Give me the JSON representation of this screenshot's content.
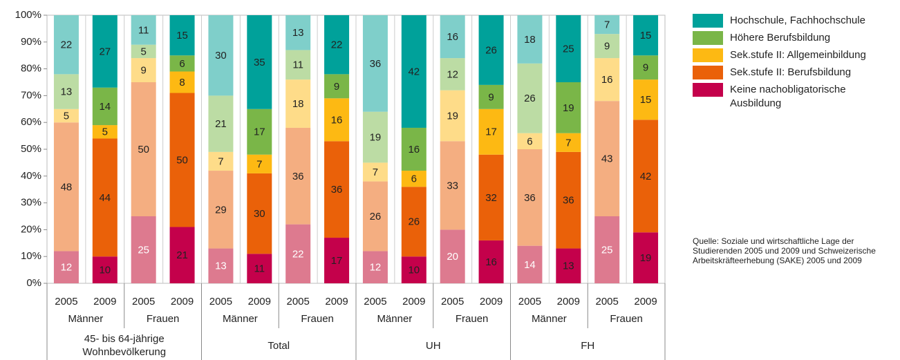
{
  "chart_data": {
    "type": "stacked_bar",
    "categories": [
      "2005",
      "2009",
      "2005",
      "2009",
      "2005",
      "2009",
      "2005",
      "2009",
      "2005",
      "2009",
      "2005",
      "2009",
      "2005",
      "2009",
      "2005",
      "2009"
    ],
    "groups": [
      "Männer",
      "Frauen",
      "Männer",
      "Frauen",
      "Männer",
      "Frauen",
      "Männer",
      "Frauen"
    ],
    "supergroups": [
      "45- bis 64-jährige Wohnbevölkerung",
      "Total",
      "UH",
      "FH"
    ],
    "ylim": [
      0,
      100
    ],
    "yticks": [
      {
        "value": 0,
        "label": "0%"
      },
      {
        "value": 10,
        "label": "10%"
      },
      {
        "value": 20,
        "label": "20%"
      },
      {
        "value": 30,
        "label": "30%"
      },
      {
        "value": 40,
        "label": "40%"
      },
      {
        "value": 50,
        "label": "50%"
      },
      {
        "value": 60,
        "label": "60%"
      },
      {
        "value": 70,
        "label": "70%"
      },
      {
        "value": 80,
        "label": "80%"
      },
      {
        "value": 90,
        "label": "90%"
      },
      {
        "value": 100,
        "label": "100%"
      }
    ],
    "series": [
      {
        "name": "Keine nachobligatorische Ausbildung",
        "color": "#c4014b",
        "colors": [
          "#dd7a8f",
          "#c4014b",
          "#dd7a8f",
          "#c4014b",
          "#dd7a8f",
          "#c4014b",
          "#dd7a8f",
          "#c4014b",
          "#dd7a8f",
          "#c4014b",
          "#dd7a8f",
          "#c4014b",
          "#dd7a8f",
          "#c4014b",
          "#dd7a8f",
          "#c4014b"
        ],
        "values": [
          12,
          10,
          25,
          21,
          13,
          11,
          22,
          17,
          12,
          10,
          20,
          16,
          14,
          13,
          25,
          19
        ]
      },
      {
        "name": "Sek.stufe II: Berufsbildung",
        "color": "#ea6109",
        "colors": [
          "#f4ae81",
          "#ea6109",
          "#f4ae81",
          "#ea6109",
          "#f4ae81",
          "#ea6109",
          "#f4ae81",
          "#ea6109",
          "#f4ae81",
          "#ea6109",
          "#f4ae81",
          "#ea6109",
          "#f4ae81",
          "#ea6109",
          "#f4ae81",
          "#ea6109"
        ],
        "values": [
          48,
          44,
          50,
          50,
          29,
          30,
          36,
          36,
          26,
          26,
          33,
          32,
          36,
          36,
          43,
          42
        ]
      },
      {
        "name": "Sek.stufe II: Allgemeinbildung",
        "color": "#fdb913",
        "colors": [
          "#fedc89",
          "#fdb913",
          "#fedc89",
          "#fdb913",
          "#fedc89",
          "#fdb913",
          "#fedc89",
          "#fdb913",
          "#fedc89",
          "#fdb913",
          "#fedc89",
          "#fdb913",
          "#fedc89",
          "#fdb913",
          "#fedc89",
          "#fdb913"
        ],
        "values": [
          5,
          5,
          9,
          8,
          7,
          7,
          18,
          16,
          7,
          6,
          19,
          17,
          6,
          7,
          16,
          15
        ]
      },
      {
        "name": "Höhere Berufsbildung",
        "color": "#7ab648",
        "colors": [
          "#bcdca4",
          "#7ab648",
          "#bcdca4",
          "#7ab648",
          "#bcdca4",
          "#7ab648",
          "#bcdca4",
          "#7ab648",
          "#bcdca4",
          "#7ab648",
          "#bcdca4",
          "#7ab648",
          "#bcdca4",
          "#7ab648",
          "#bcdca4",
          "#7ab648"
        ],
        "values": [
          13,
          14,
          5,
          6,
          21,
          17,
          11,
          9,
          19,
          16,
          12,
          9,
          26,
          19,
          9,
          9
        ]
      },
      {
        "name": "Hochschule, Fachhochschule",
        "color": "#00a19a",
        "colors": [
          "#7fcfca",
          "#00a19a",
          "#7fcfca",
          "#00a19a",
          "#7fcfca",
          "#00a19a",
          "#7fcfca",
          "#00a19a",
          "#7fcfca",
          "#00a19a",
          "#7fcfca",
          "#00a19a",
          "#7fcfca",
          "#00a19a",
          "#7fcfca",
          "#00a19a"
        ],
        "values": [
          22,
          27,
          11,
          15,
          30,
          35,
          13,
          22,
          36,
          42,
          16,
          26,
          18,
          25,
          7,
          15
        ]
      }
    ],
    "source": "Quelle: Soziale und wirtschaftliche Lage der Studierenden 2005 und 2009 und Schweizerische Arbeitskräfteerhebung (SAKE) 2005 und 2009"
  }
}
